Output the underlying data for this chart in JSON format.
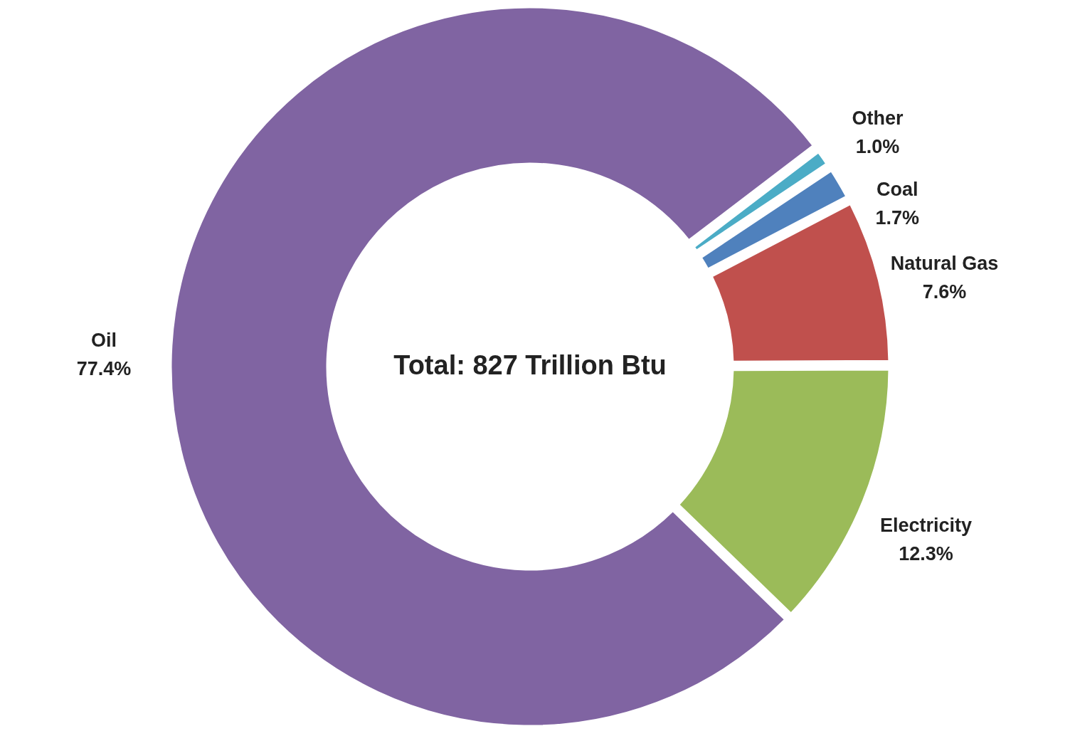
{
  "chart_data": {
    "type": "donut",
    "categories": [
      "Other",
      "Coal",
      "Natural Gas",
      "Electricity",
      "Oil"
    ],
    "values": [
      1.0,
      1.7,
      7.6,
      12.3,
      77.4
    ],
    "colors": [
      "#4bacc6",
      "#4f81bd",
      "#c0504d",
      "#9bbb59",
      "#8064a2"
    ],
    "value_labels": [
      "1.0%",
      "1.7%",
      "7.6%",
      "12.3%",
      "77.4%"
    ],
    "annotations": [
      "Total: 827 Trillion Btu"
    ]
  }
}
